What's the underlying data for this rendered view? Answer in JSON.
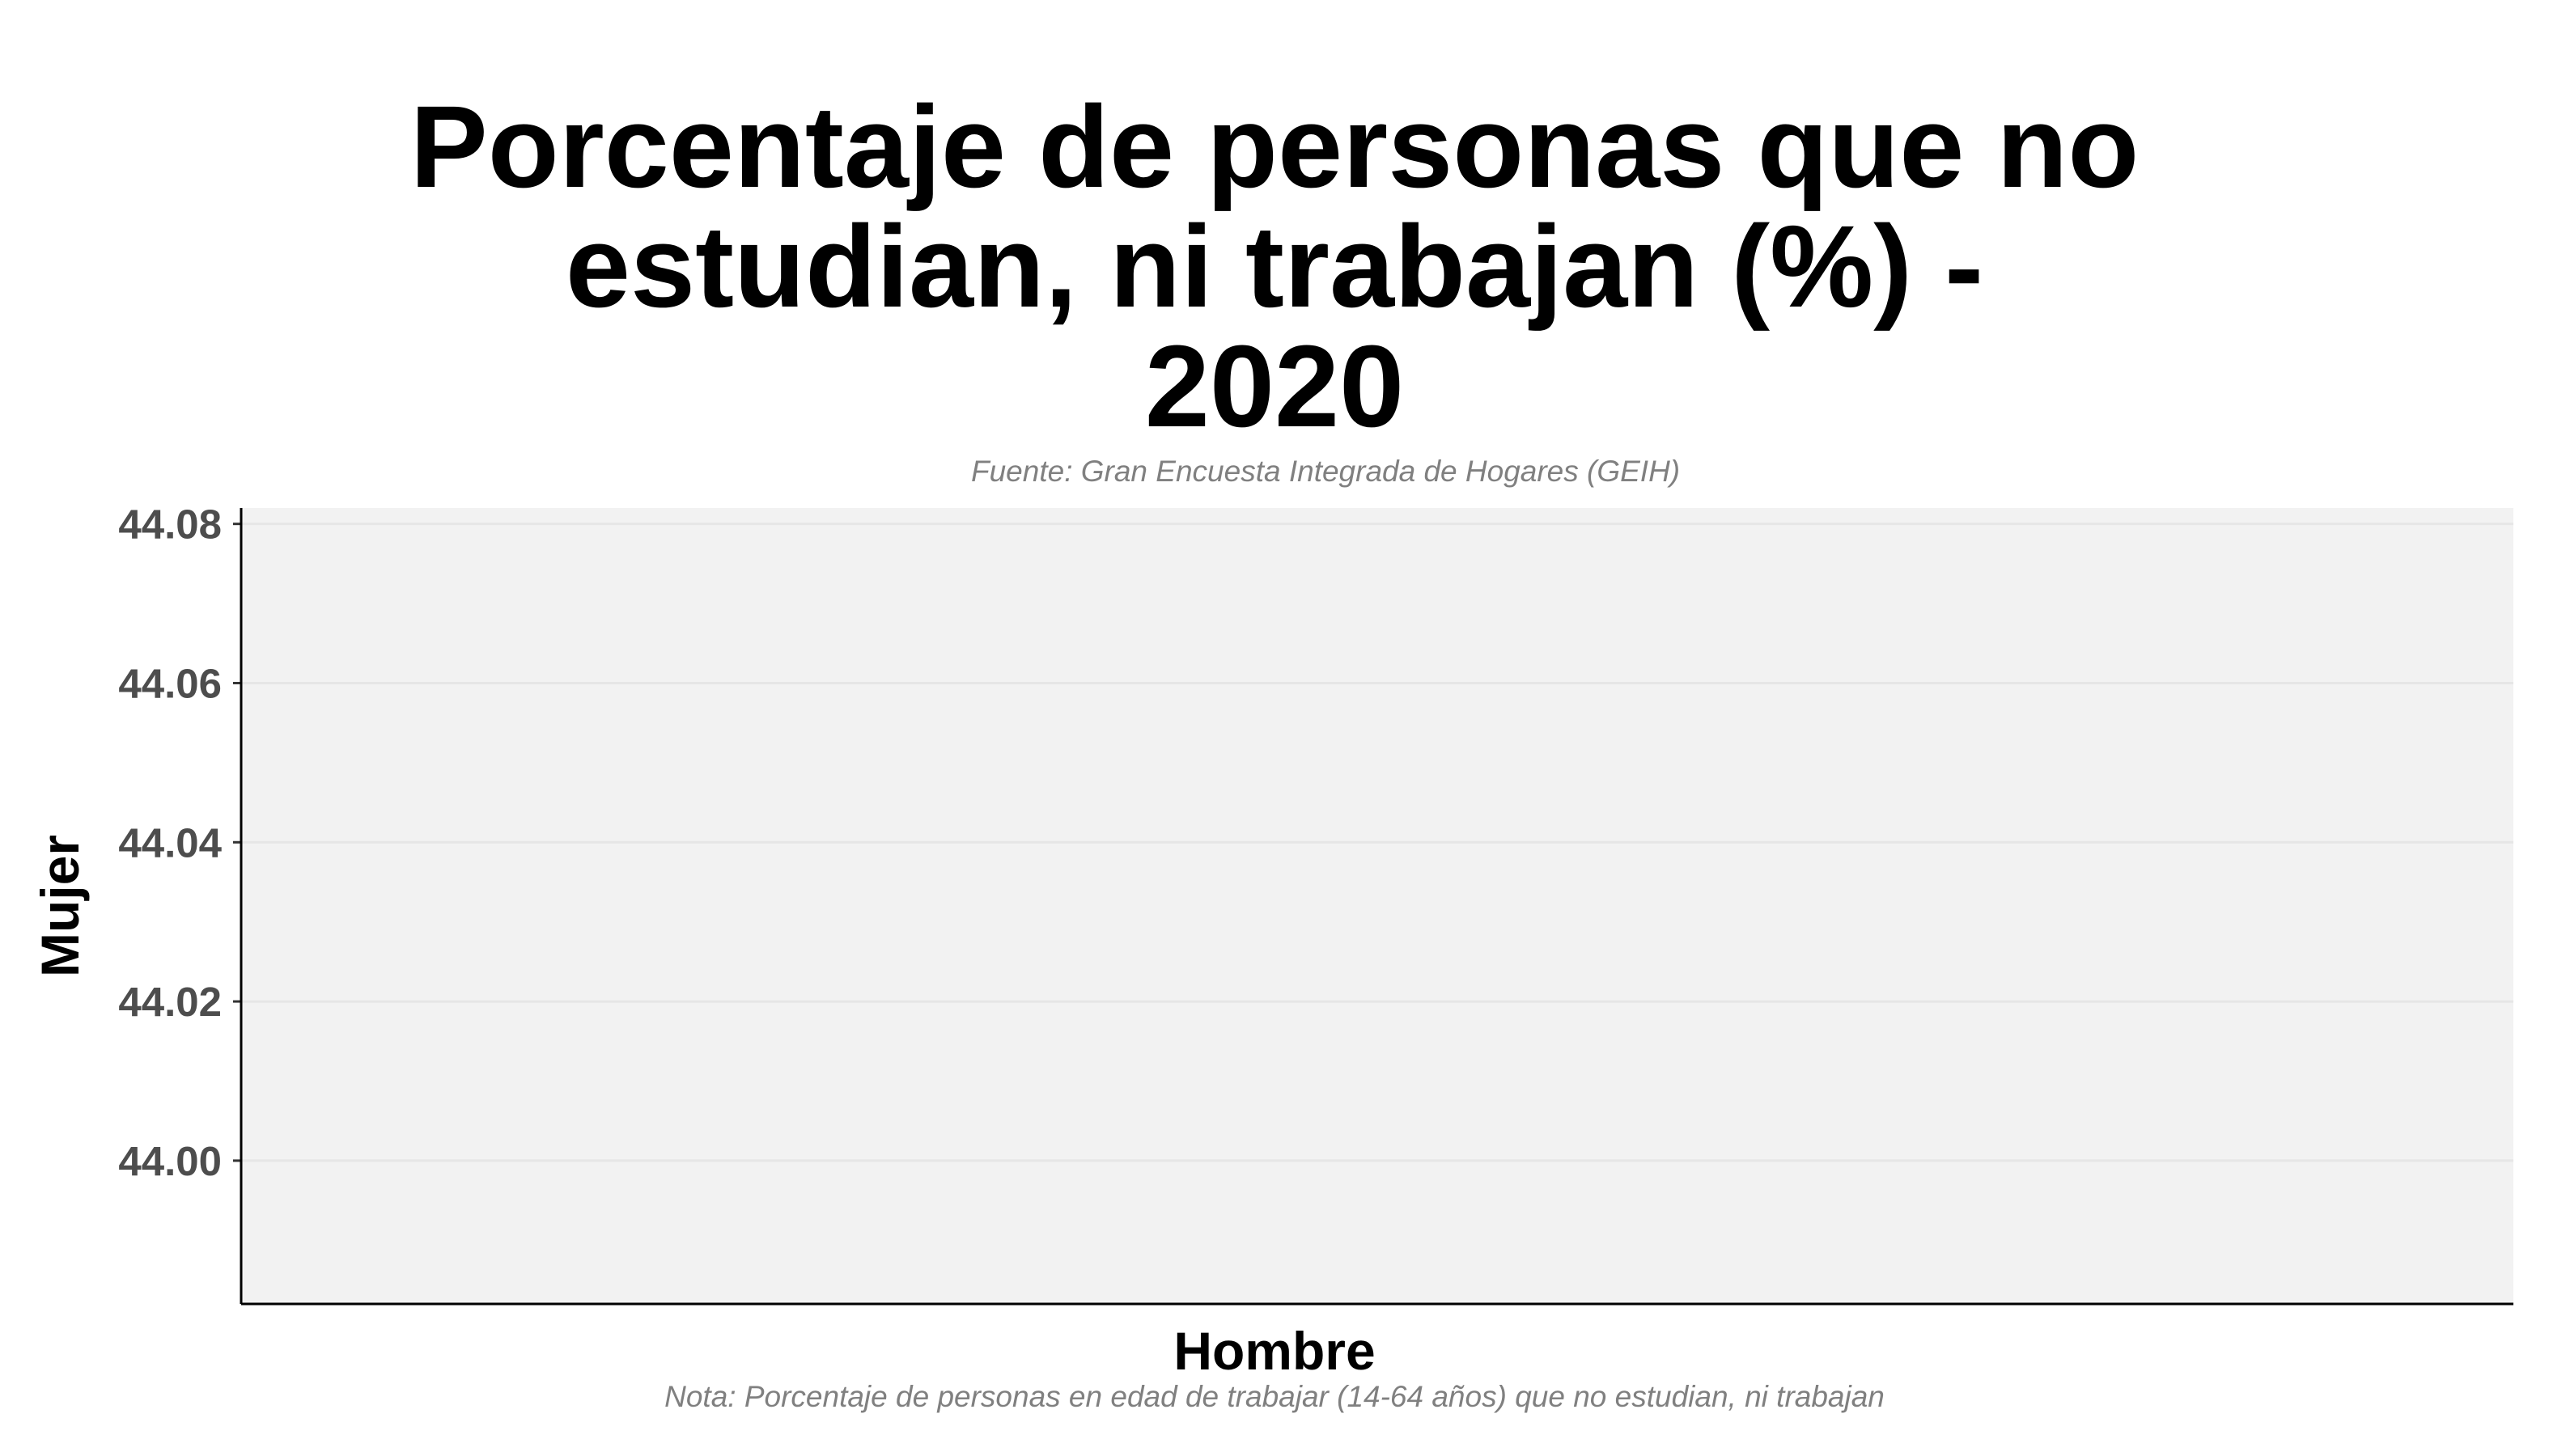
{
  "chart_data": {
    "type": "bar",
    "title": "Porcentaje de personas que no estudian, ni trabajan (%) - 2020",
    "title_lines": [
      "Porcentaje de personas que no",
      "estudian, ni trabajan (%) -",
      "2020"
    ],
    "subtitle": "Fuente: Gran Encuesta Integrada de Hogares (GEIH)",
    "caption": "Nota: Porcentaje de personas en edad de trabajar (14-64 años) que no estudian, ni trabajan",
    "xlabel": "Hombre",
    "ylabel": "Mujer",
    "categories": [],
    "values": [],
    "yticks": [
      "44.00",
      "44.02",
      "44.04",
      "44.06",
      "44.08"
    ],
    "ylim": [
      43.982,
      44.082
    ],
    "grid": true,
    "colors": {
      "panel": "#f2f2f2",
      "grid": "#e6e6e6",
      "axis": "#000000",
      "tick_text": "#4d4d4d",
      "note_text": "#808080"
    }
  }
}
